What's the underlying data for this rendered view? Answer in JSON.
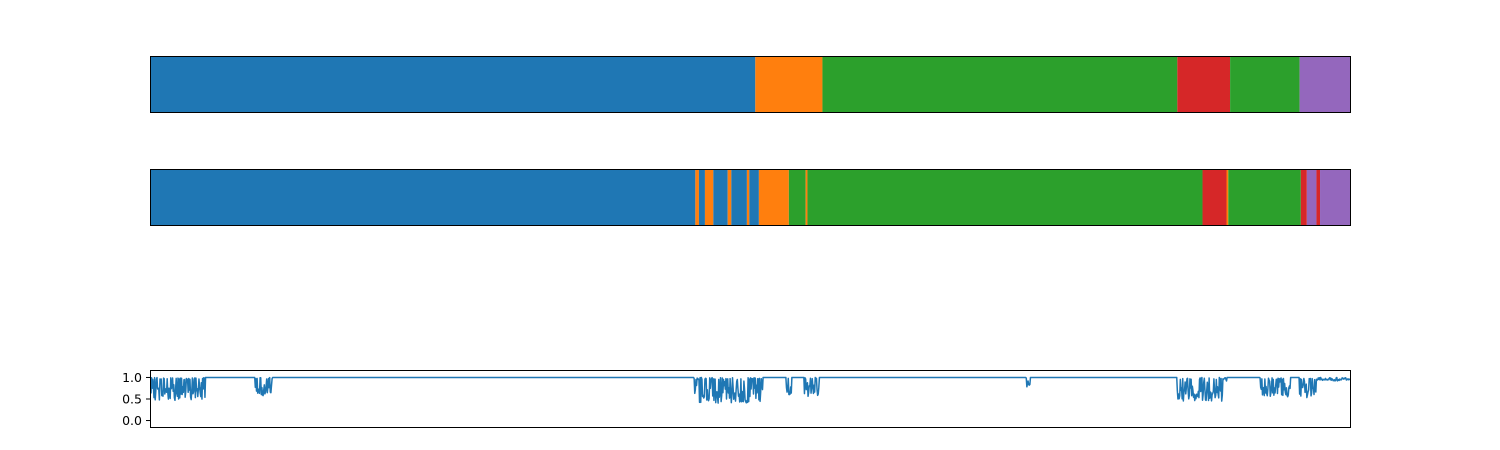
{
  "chart_data": [
    {
      "type": "bar",
      "subtype": "segment-strip",
      "role": "ground-truth segmentation",
      "xlim": [
        0,
        1000
      ],
      "axes_visible": false,
      "segments": [
        {
          "start": 0,
          "end": 504,
          "label": 0
        },
        {
          "start": 504,
          "end": 560,
          "label": 1
        },
        {
          "start": 560,
          "end": 856,
          "label": 2
        },
        {
          "start": 856,
          "end": 900,
          "label": 3
        },
        {
          "start": 900,
          "end": 958,
          "label": 2
        },
        {
          "start": 958,
          "end": 1000,
          "label": 4
        }
      ]
    },
    {
      "type": "bar",
      "subtype": "segment-strip",
      "role": "predicted segmentation",
      "xlim": [
        0,
        1000
      ],
      "axes_visible": false,
      "segments": [
        {
          "start": 0,
          "end": 454,
          "label": 0
        },
        {
          "start": 454,
          "end": 457,
          "label": 1
        },
        {
          "start": 457,
          "end": 462,
          "label": 0
        },
        {
          "start": 462,
          "end": 469,
          "label": 1
        },
        {
          "start": 469,
          "end": 481,
          "label": 0
        },
        {
          "start": 481,
          "end": 484,
          "label": 1
        },
        {
          "start": 484,
          "end": 497,
          "label": 0
        },
        {
          "start": 497,
          "end": 499,
          "label": 1
        },
        {
          "start": 499,
          "end": 507,
          "label": 0
        },
        {
          "start": 507,
          "end": 532,
          "label": 1
        },
        {
          "start": 532,
          "end": 546,
          "label": 2
        },
        {
          "start": 546,
          "end": 547.5,
          "label": 1
        },
        {
          "start": 547.5,
          "end": 877,
          "label": 2
        },
        {
          "start": 877,
          "end": 897,
          "label": 3
        },
        {
          "start": 897,
          "end": 898.5,
          "label": 1
        },
        {
          "start": 898.5,
          "end": 959,
          "label": 2
        },
        {
          "start": 959,
          "end": 964,
          "label": 3
        },
        {
          "start": 964,
          "end": 972,
          "label": 4
        },
        {
          "start": 972,
          "end": 975,
          "label": 3
        },
        {
          "start": 975,
          "end": 1000,
          "label": 4
        }
      ]
    },
    {
      "type": "line",
      "role": "confidence trace",
      "xlim": [
        0,
        1000
      ],
      "ylim": [
        -0.15,
        1.15
      ],
      "yticks": [
        1.0,
        0.5,
        0.0
      ],
      "ytick_labels": [
        "1.0",
        "0.5",
        "0.0"
      ],
      "xticks_visible": false,
      "baseline": 1.0,
      "dip_regions": [
        {
          "start": 0,
          "end": 45,
          "min": 0.47
        },
        {
          "start": 87,
          "end": 101,
          "min": 0.58
        },
        {
          "start": 453,
          "end": 510,
          "min": 0.4
        },
        {
          "start": 530,
          "end": 534,
          "min": 0.6
        },
        {
          "start": 545,
          "end": 557,
          "min": 0.55
        },
        {
          "start": 730,
          "end": 733,
          "min": 0.75
        },
        {
          "start": 856,
          "end": 897,
          "min": 0.45
        },
        {
          "start": 925,
          "end": 950,
          "min": 0.55
        },
        {
          "start": 958,
          "end": 972,
          "min": 0.45
        },
        {
          "start": 972,
          "end": 1000,
          "min": 0.92
        }
      ]
    }
  ],
  "colors": {
    "label_palette": [
      "#1f77b4",
      "#ff7f0e",
      "#2ca02c",
      "#d62728",
      "#9467bd"
    ],
    "line": "#1f77b4",
    "axes_edge": "#000000"
  }
}
